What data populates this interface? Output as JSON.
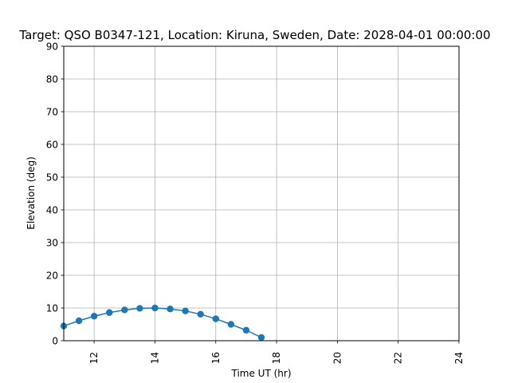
{
  "chart_data": {
    "type": "line",
    "title": "Target: QSO B0347-121,  Location: Kiruna, Sweden, Date: 2028-04-01 00:00:00",
    "xlabel": "Time UT (hr)",
    "ylabel": "Elevation (deg)",
    "xlim": [
      11,
      24
    ],
    "ylim": [
      0,
      90
    ],
    "xticks": [
      "12",
      "14",
      "16",
      "18",
      "20",
      "22",
      "24"
    ],
    "yticks": [
      "0",
      "10",
      "20",
      "30",
      "40",
      "50",
      "60",
      "70",
      "80",
      "90"
    ],
    "grid": true,
    "marker": "circle",
    "series": [
      {
        "color": "#1f77b4",
        "x": [
          11.0,
          11.5,
          12.0,
          12.5,
          13.0,
          13.5,
          14.0,
          14.5,
          15.0,
          15.5,
          16.0,
          16.5,
          17.0,
          17.5
        ],
        "y": [
          4.5,
          6.1,
          7.5,
          8.6,
          9.4,
          9.9,
          10.0,
          9.7,
          9.1,
          8.1,
          6.7,
          5.0,
          3.2,
          1.0
        ]
      }
    ]
  }
}
